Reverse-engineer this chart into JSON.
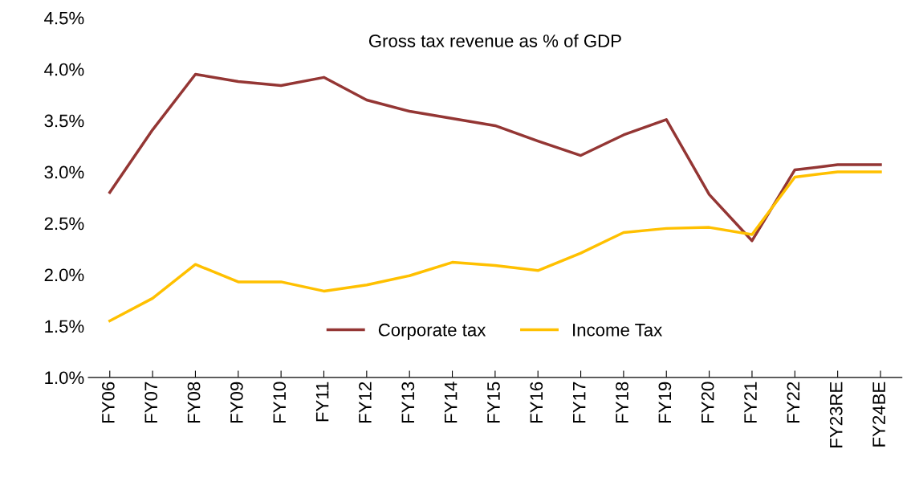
{
  "chart_data": {
    "type": "line",
    "title": "Gross tax revenue as % of GDP",
    "categories": [
      "FY06",
      "FY07",
      "FY08",
      "FY09",
      "FY10",
      "FY11",
      "FY12",
      "FY13",
      "FY14",
      "FY15",
      "FY16",
      "FY17",
      "FY18",
      "FY19",
      "FY20",
      "FY21",
      "FY22",
      "FY23RE",
      "FY24BE"
    ],
    "series": [
      {
        "name": "Corporate tax",
        "color": "#943634",
        "values": [
          2.8,
          3.41,
          3.95,
          3.88,
          3.84,
          3.92,
          3.7,
          3.59,
          3.52,
          3.45,
          3.3,
          3.16,
          3.36,
          3.51,
          2.78,
          2.33,
          3.02,
          3.07,
          3.07
        ]
      },
      {
        "name": "Income Tax",
        "color": "#ffc000",
        "values": [
          1.55,
          1.77,
          2.1,
          1.93,
          1.93,
          1.84,
          1.9,
          1.99,
          2.12,
          2.09,
          2.04,
          2.21,
          2.41,
          2.45,
          2.46,
          2.39,
          2.95,
          3.0,
          3.0
        ]
      }
    ],
    "ylim": [
      1.0,
      4.5
    ],
    "yticks": [
      {
        "value": 1.0,
        "label": "1.0%"
      },
      {
        "value": 1.5,
        "label": "1.5%"
      },
      {
        "value": 2.0,
        "label": "2.0%"
      },
      {
        "value": 2.5,
        "label": "2.5%"
      },
      {
        "value": 3.0,
        "label": "3.0%"
      },
      {
        "value": 3.5,
        "label": "3.5%"
      },
      {
        "value": 4.0,
        "label": "4.0%"
      },
      {
        "value": 4.5,
        "label": "4.5%"
      }
    ],
    "grid": false,
    "legend": "bottom",
    "marker": "none",
    "line_style": "solid"
  }
}
